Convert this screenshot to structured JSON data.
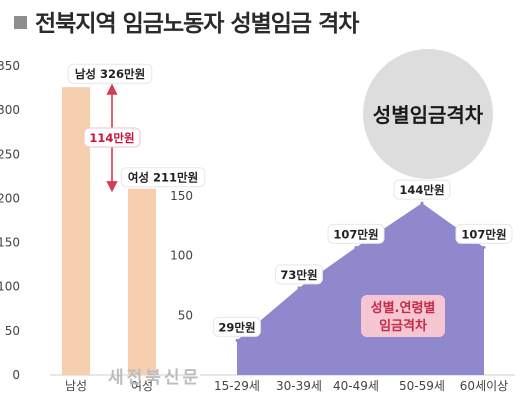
{
  "title": "전북지역 임금노동자 성별임금 격차",
  "watermark": "새전북신문",
  "colors": {
    "bar": "#f5cfae",
    "area": "#8f88cc",
    "arrow": "#d93a52",
    "circle": "#dddddd",
    "area_label_bg": "#f6c6d2"
  },
  "chart_data": [
    {
      "type": "bar",
      "categories": [
        "남성",
        "여성"
      ],
      "values": [
        326,
        211
      ],
      "ylim": [
        0,
        350
      ],
      "yticks": [
        0,
        50,
        100,
        150,
        200,
        250,
        300,
        350
      ],
      "value_labels": [
        "남성 326만원",
        "여성 211만원"
      ],
      "gap_label": "114만원"
    },
    {
      "type": "area",
      "title": "성별임금격차",
      "categories": [
        "15-29세",
        "30-39세",
        "40-49세",
        "50-59세",
        "60세이상"
      ],
      "values": [
        29,
        73,
        107,
        144,
        107
      ],
      "value_labels": [
        "29만원",
        "73만원",
        "107만원",
        "144만원",
        "107만원"
      ],
      "ylim": [
        0,
        150
      ],
      "yticks": [
        50,
        100,
        150
      ],
      "area_label": [
        "성별.연령별",
        "임금격차"
      ]
    }
  ]
}
